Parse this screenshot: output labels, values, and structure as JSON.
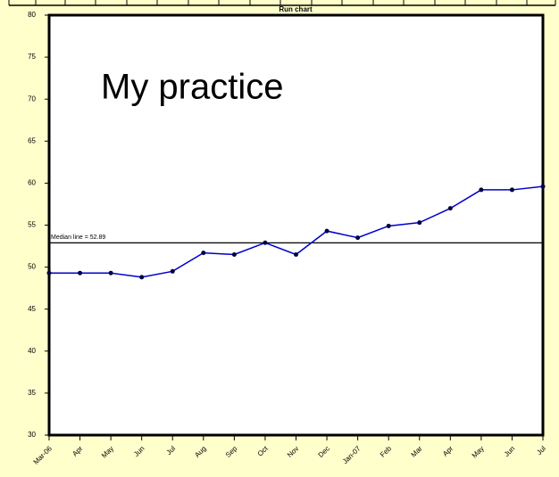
{
  "chart_data": {
    "type": "line",
    "title": "Run chart",
    "annotation": "My practice",
    "categories": [
      "Mar-06",
      "Apr",
      "May",
      "Jun",
      "Jul",
      "Aug",
      "Sep",
      "Oct",
      "Nov",
      "Dec",
      "Jan-07",
      "Feb",
      "Mar",
      "Apr",
      "May",
      "Jun",
      "Jul"
    ],
    "series": [
      {
        "color": "#0000cc",
        "values": [
          49.3,
          49.3,
          49.3,
          48.8,
          49.5,
          51.7,
          51.5,
          52.9,
          51.5,
          54.3,
          53.5,
          54.9,
          55.3,
          57.0,
          59.2,
          59.2,
          59.6
        ]
      }
    ],
    "median": 52.89,
    "median_label": "Median line = 52.89",
    "ylim": [
      30,
      80
    ],
    "yticks": [
      30,
      35,
      40,
      45,
      50,
      55,
      60,
      65,
      70,
      75,
      80
    ]
  }
}
